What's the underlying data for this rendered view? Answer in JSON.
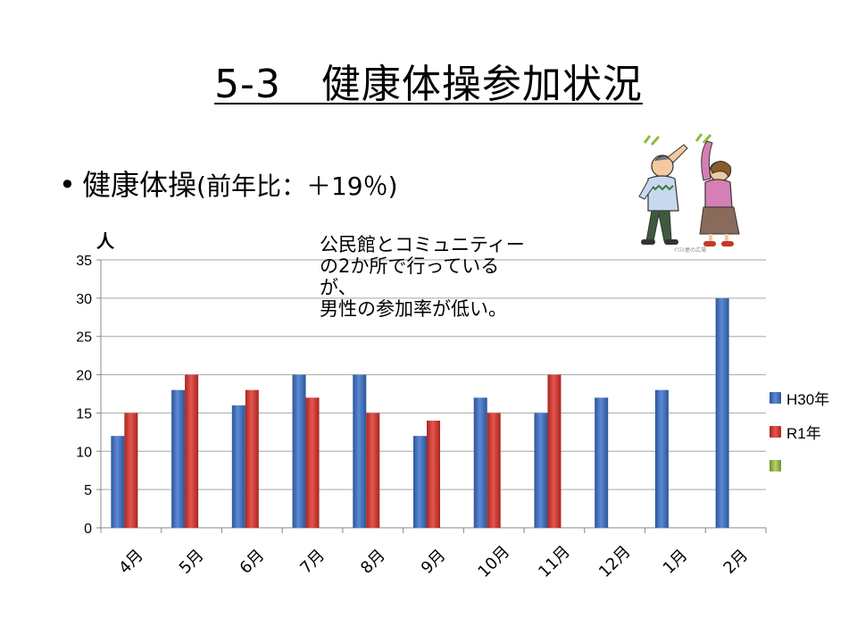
{
  "slide": {
    "title": "5-3　健康体操参加状況",
    "bullet_main": "健康体操",
    "bullet_paren": "(前年比：＋19％)",
    "note": "公民館とコミュニティー\nの2か所で行っている\nが、\n男性の参加率が低い。",
    "illustration_caption": "ｲﾗｽﾄ屋の広場"
  },
  "chart_data": {
    "type": "bar",
    "ylabel": "人",
    "ylim": [
      0,
      35
    ],
    "yticks": [
      0,
      5,
      10,
      15,
      20,
      25,
      30,
      35
    ],
    "categories": [
      "4月",
      "5月",
      "6月",
      "7月",
      "8月",
      "9月",
      "10月",
      "11月",
      "12月",
      "1月",
      "2月"
    ],
    "series": [
      {
        "name": "H30年",
        "color": "#4472c4",
        "values": [
          12,
          18,
          16,
          20,
          20,
          12,
          17,
          15,
          17,
          18,
          30
        ]
      },
      {
        "name": "R1年",
        "color": "#d9413d",
        "values": [
          15,
          20,
          18,
          17,
          15,
          14,
          15,
          20,
          null,
          null,
          null
        ]
      },
      {
        "name": "",
        "color": "#9bbb59",
        "values": [
          null,
          null,
          null,
          null,
          null,
          null,
          null,
          null,
          null,
          null,
          null
        ]
      }
    ],
    "grid": true,
    "legend": "right"
  }
}
